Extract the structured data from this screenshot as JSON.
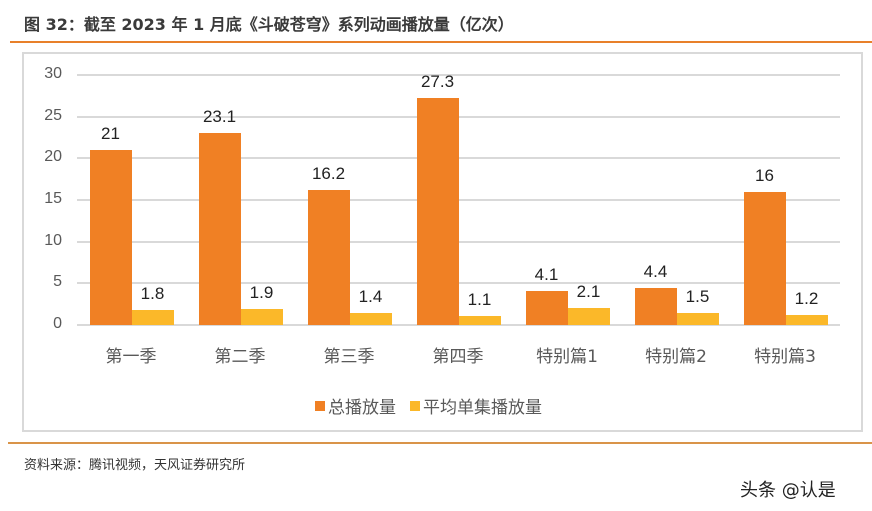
{
  "header": {
    "title": "图 32：截至 2023 年 1 月底《斗破苍穹》系列动画播放量（亿次）"
  },
  "footer": {
    "source": "资料来源：腾讯视频，天风证券研究所",
    "watermark": "头条 @认是"
  },
  "colors": {
    "accent_rule": "#e8802a",
    "series_total": "#f08024",
    "series_avg": "#fbb829",
    "grid": "#d9d9d9"
  },
  "chart_data": {
    "type": "bar",
    "title": "截至 2023 年 1 月底《斗破苍穹》系列动画播放量（亿次）",
    "xlabel": "",
    "ylabel": "",
    "ylim": [
      0,
      30
    ],
    "yticks": [
      0,
      5,
      10,
      15,
      20,
      25,
      30
    ],
    "grid": true,
    "legend_position": "bottom",
    "categories": [
      "第一季",
      "第二季",
      "第三季",
      "第四季",
      "特别篇1",
      "特别篇2",
      "特别篇3"
    ],
    "series": [
      {
        "name": "总播放量",
        "color": "#f08024",
        "values": [
          21,
          23.1,
          16.2,
          27.3,
          4.1,
          4.4,
          16
        ]
      },
      {
        "name": "平均单集播放量",
        "color": "#fbb829",
        "values": [
          1.8,
          1.9,
          1.4,
          1.1,
          2.1,
          1.5,
          1.2
        ]
      }
    ]
  }
}
